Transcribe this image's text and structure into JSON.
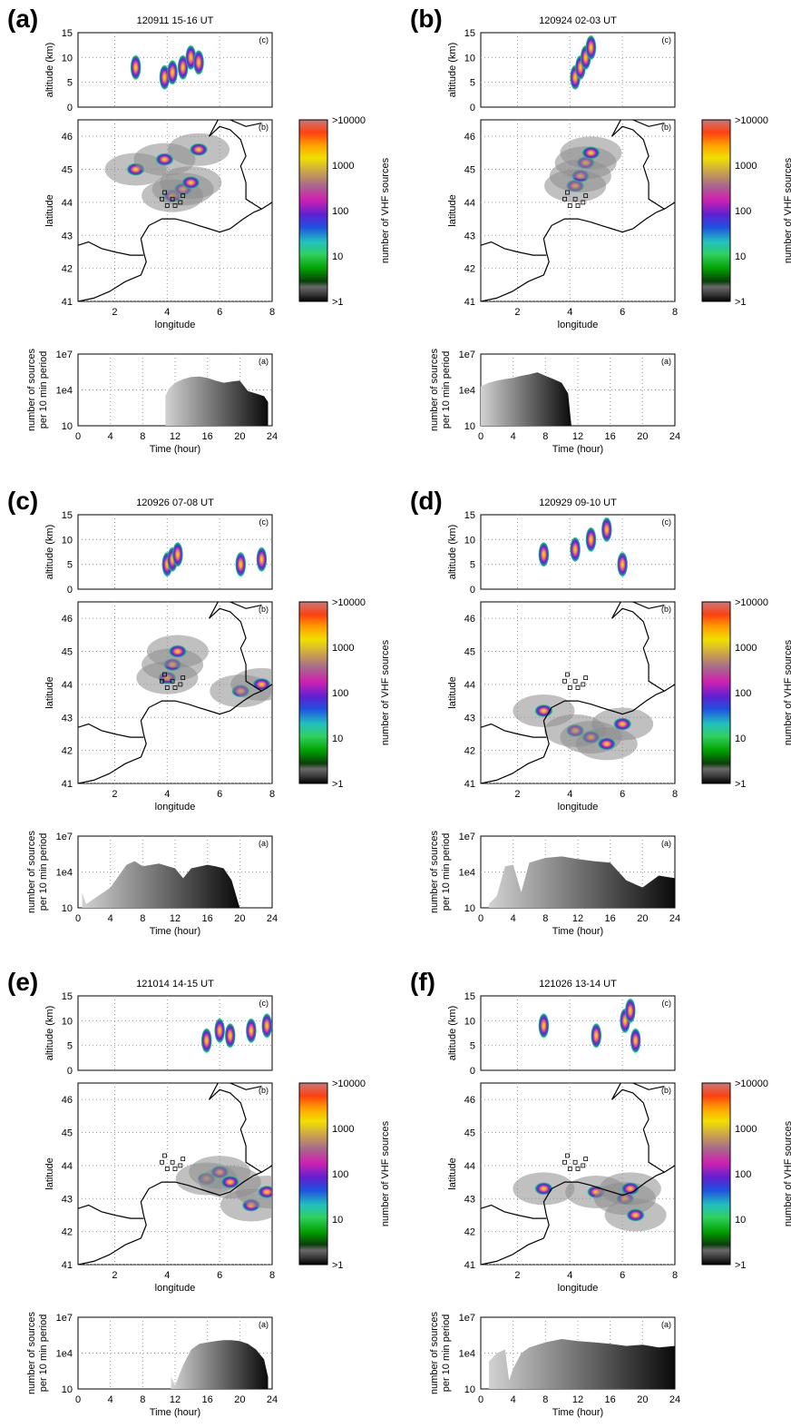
{
  "figure": {
    "altitude_label": "altitude (km)",
    "latitude_label": "latitude",
    "longitude_label": "longitude",
    "count_label_line1": "number of sources",
    "count_label_line2": "per 10 min period",
    "time_label": "Time (hour)",
    "colorbar_label": "number of VHF sources",
    "colorbar_ticks": [
      ">10000",
      "1000",
      "100",
      "10",
      ">1"
    ],
    "sub_tags": {
      "altitude": "(c)",
      "map": "(b)",
      "count": "(a)"
    },
    "altitude_ticks": [
      "0",
      "5",
      "10",
      "15"
    ],
    "latitude_ticks": [
      "41",
      "42",
      "43",
      "44",
      "45",
      "46"
    ],
    "longitude_ticks": [
      "2",
      "4",
      "6",
      "8"
    ],
    "time_ticks": [
      "0",
      "4",
      "8",
      "12",
      "16",
      "20",
      "24"
    ],
    "count_ticks": [
      "10",
      "1e4",
      "1e7"
    ]
  },
  "chart_data": [
    {
      "type": "area",
      "panel": "(a)",
      "title": "120911 15-16 UT",
      "xlabel": "Time (hour)",
      "ylabel": "number of sources per 10 min period",
      "xlim": [
        0,
        24
      ],
      "yscale": "log",
      "ylim": [
        10,
        10000000
      ],
      "x": [
        10.8,
        11.2,
        12,
        13,
        14,
        15,
        16,
        17,
        18,
        19,
        20,
        21,
        22,
        23,
        23.5
      ],
      "values": [
        3000,
        12000,
        40000,
        80000,
        120000,
        130000,
        100000,
        60000,
        40000,
        50000,
        60000,
        8000,
        5000,
        3000,
        1000
      ],
      "map_longitude": [
        2.8,
        3.9,
        4.2,
        4.6,
        4.9,
        5.2
      ],
      "map_latitude": [
        45.0,
        45.3,
        44.2,
        44.4,
        44.6,
        45.6
      ],
      "flash_altitude_km": [
        8,
        6,
        7,
        8,
        10,
        9
      ]
    },
    {
      "type": "area",
      "panel": "(b)",
      "title": "120924 02-03 UT",
      "xlabel": "Time (hour)",
      "ylabel": "number of sources per 10 min period",
      "xlim": [
        0,
        24
      ],
      "yscale": "log",
      "ylim": [
        10,
        10000000
      ],
      "x": [
        0,
        1,
        2,
        3,
        4,
        5,
        6,
        7,
        8,
        9,
        10,
        10.8,
        11.2
      ],
      "values": [
        20000,
        40000,
        60000,
        80000,
        100000,
        150000,
        200000,
        300000,
        150000,
        80000,
        40000,
        5000,
        10
      ],
      "map_longitude": [
        4.2,
        4.4,
        4.6,
        4.8
      ],
      "map_latitude": [
        44.5,
        44.8,
        45.2,
        45.5
      ],
      "flash_altitude_km": [
        6,
        8,
        10,
        12
      ]
    },
    {
      "type": "area",
      "panel": "(c)",
      "title": "120926 07-08 UT",
      "xlabel": "Time (hour)",
      "ylabel": "number of sources per 10 min period",
      "xlim": [
        0,
        24
      ],
      "yscale": "log",
      "ylim": [
        10,
        10000000
      ],
      "x": [
        0.5,
        1,
        4,
        6,
        7,
        8,
        10,
        12,
        13,
        14,
        16,
        17,
        18,
        19,
        20
      ],
      "values": [
        200,
        20,
        500,
        40000,
        80000,
        30000,
        50000,
        20000,
        3000,
        20000,
        40000,
        30000,
        20000,
        2000,
        10
      ],
      "map_longitude": [
        4.0,
        4.2,
        4.4,
        6.8,
        7.6
      ],
      "map_latitude": [
        44.2,
        44.6,
        45.0,
        43.8,
        44.0
      ],
      "flash_altitude_km": [
        5,
        6,
        7,
        5,
        6
      ]
    },
    {
      "type": "area",
      "panel": "(d)",
      "title": "120929 09-10 UT",
      "xlabel": "Time (hour)",
      "ylabel": "number of sources per 10 min period",
      "xlim": [
        0,
        24
      ],
      "yscale": "log",
      "ylim": [
        10,
        10000000
      ],
      "x": [
        1,
        2,
        3,
        4,
        5,
        6,
        8,
        10,
        12,
        14,
        16,
        18,
        20,
        22,
        24
      ],
      "values": [
        20,
        100,
        30000,
        40000,
        200,
        60000,
        150000,
        200000,
        120000,
        80000,
        60000,
        2000,
        500,
        5000,
        3000
      ],
      "map_longitude": [
        3.0,
        4.2,
        4.8,
        5.4,
        6.0
      ],
      "map_latitude": [
        43.2,
        42.6,
        42.4,
        42.2,
        42.8
      ],
      "flash_altitude_km": [
        7,
        8,
        10,
        12,
        5
      ]
    },
    {
      "type": "area",
      "panel": "(e)",
      "title": "121014 14-15 UT",
      "xlabel": "Time (hour)",
      "ylabel": "number of sources per 10 min period",
      "xlim": [
        0,
        24
      ],
      "yscale": "log",
      "ylim": [
        10,
        10000000
      ],
      "x": [
        11.5,
        12,
        13,
        14,
        15,
        16,
        17,
        18,
        19,
        20,
        21,
        22,
        23,
        23.5
      ],
      "values": [
        100,
        20,
        1000,
        20000,
        60000,
        80000,
        100000,
        120000,
        120000,
        100000,
        60000,
        20000,
        3000,
        100
      ],
      "map_longitude": [
        5.5,
        6.0,
        6.4,
        7.2,
        7.8
      ],
      "map_latitude": [
        43.6,
        43.8,
        43.5,
        42.8,
        43.2
      ],
      "flash_altitude_km": [
        6,
        8,
        7,
        8,
        9
      ]
    },
    {
      "type": "area",
      "panel": "(f)",
      "title": "121026 13-14 UT",
      "xlabel": "Time (hour)",
      "ylabel": "number of sources per 10 min period",
      "xlim": [
        0,
        24
      ],
      "yscale": "log",
      "ylim": [
        10,
        10000000
      ],
      "x": [
        1,
        2,
        3,
        3.5,
        4,
        5,
        6,
        8,
        10,
        12,
        14,
        16,
        18,
        20,
        22,
        24
      ],
      "values": [
        2000,
        10000,
        20000,
        50,
        500,
        10000,
        30000,
        80000,
        150000,
        100000,
        80000,
        60000,
        40000,
        50000,
        30000,
        40000
      ],
      "map_longitude": [
        3.0,
        5.0,
        6.1,
        6.3,
        6.5
      ],
      "map_latitude": [
        43.3,
        43.2,
        43.0,
        43.3,
        42.5
      ],
      "flash_altitude_km": [
        9,
        7,
        10,
        12,
        6
      ]
    }
  ]
}
